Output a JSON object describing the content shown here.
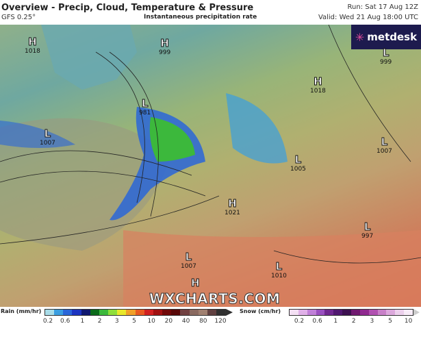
{
  "header": {
    "title": "Overview - Precip, Cloud, Temperature & Pressure",
    "model": "GFS 0.25°",
    "subtitle": "Instantaneous precipitation rate",
    "run": "Run: Sat 17 Aug 12Z",
    "valid": "Valid: Wed 21 Aug 18:00 UTC"
  },
  "logo": {
    "text": "metdesk"
  },
  "watermark": "WXCHARTS.COM",
  "pressure_systems": [
    {
      "type": "H",
      "value": "1018"
    },
    {
      "type": "H",
      "value": "999"
    },
    {
      "type": "L",
      "value": "999"
    },
    {
      "type": "H",
      "value": "1018"
    },
    {
      "type": "L",
      "value": "981"
    },
    {
      "type": "L",
      "value": "1007"
    },
    {
      "type": "L",
      "value": "1007"
    },
    {
      "type": "L",
      "value": "1005"
    },
    {
      "type": "H",
      "value": "1021"
    },
    {
      "type": "L",
      "value": "997"
    },
    {
      "type": "L",
      "value": "1007"
    },
    {
      "type": "L",
      "value": "1010"
    },
    {
      "type": "H",
      "value": ""
    }
  ],
  "legend": {
    "rain": {
      "label": "Rain (mm/hr)",
      "ticks": [
        "0.2",
        "0.6",
        "1",
        "2",
        "3",
        "5",
        "10",
        "20",
        "40",
        "80",
        "120"
      ],
      "colors": [
        "#a8dce8",
        "#3a9ee0",
        "#2a66d8",
        "#1c34c0",
        "#101870",
        "#0a6a1a",
        "#3cb83c",
        "#8ede3a",
        "#e8e82a",
        "#f0a028",
        "#e85a20",
        "#d02020",
        "#a01010",
        "#700808",
        "#580808",
        "#704040",
        "#8a6a60",
        "#a08070",
        "#604040",
        "#303030"
      ]
    },
    "snow": {
      "label": "Snow (cm/hr)",
      "ticks": [
        "0.2",
        "0.6",
        "1",
        "2",
        "3",
        "5",
        "10"
      ],
      "colors": [
        "#f4e0f4",
        "#e0b0e8",
        "#c080d8",
        "#9a50c0",
        "#702890",
        "#501870",
        "#3c1050",
        "#701a70",
        "#902a90",
        "#b050b0",
        "#c880c8",
        "#dca8dc",
        "#ecd0ec",
        "#f8ecf8"
      ]
    }
  }
}
